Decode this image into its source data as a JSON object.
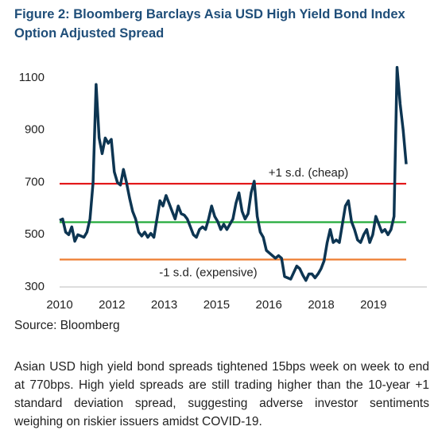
{
  "chart_data": {
    "type": "line",
    "title": [
      "Figure 2: Bloomberg Barclays Asia USD High Yield Bond Index",
      "Option Adjusted Spread"
    ],
    "xticks": [
      "2010",
      "2012",
      "2013",
      "2015",
      "2016",
      "2018",
      "2019"
    ],
    "series": [
      {
        "color": "#0d3552",
        "values": [
          555,
          560,
          510,
          500,
          530,
          475,
          500,
          495,
          490,
          510,
          560,
          700,
          1075,
          870,
          810,
          870,
          850,
          865,
          740,
          700,
          690,
          750,
          700,
          640,
          590,
          560,
          510,
          495,
          510,
          490,
          505,
          490,
          560,
          630,
          610,
          650,
          620,
          590,
          560,
          610,
          580,
          575,
          560,
          530,
          500,
          490,
          520,
          530,
          520,
          560,
          610,
          570,
          550,
          520,
          540,
          520,
          540,
          560,
          620,
          660,
          590,
          560,
          580,
          660,
          705,
          570,
          510,
          490,
          440,
          430,
          420,
          410,
          420,
          410,
          340,
          335,
          330,
          355,
          380,
          370,
          345,
          325,
          350,
          350,
          335,
          350,
          370,
          400,
          470,
          520,
          470,
          480,
          470,
          540,
          610,
          630,
          550,
          520,
          480,
          470,
          500,
          520,
          470,
          500,
          570,
          540,
          510,
          520,
          500,
          520,
          570,
          1140,
          1000,
          900,
          770
        ]
      }
    ],
    "ylim": [
      300,
      1100
    ],
    "yticks": [
      300,
      500,
      700,
      900,
      1100
    ],
    "reference_lines": [
      {
        "value": 695,
        "color": "#e31a1c",
        "label": "+1 s.d. (cheap)"
      },
      {
        "value": 548,
        "color": "#22aa3a"
      },
      {
        "value": 405,
        "color": "#ed7d31",
        "label": "-1 s.d. (expensive)"
      }
    ],
    "source": "Source: Bloomberg"
  },
  "caption": "Asian USD high yield bond spreads tightened 15bps week on week to end at 770bps. High yield spreads are still trading higher than the 10-year +1 standard deviation spread, suggesting adverse investor sentiments weighing on riskier issuers amidst COVID-19."
}
